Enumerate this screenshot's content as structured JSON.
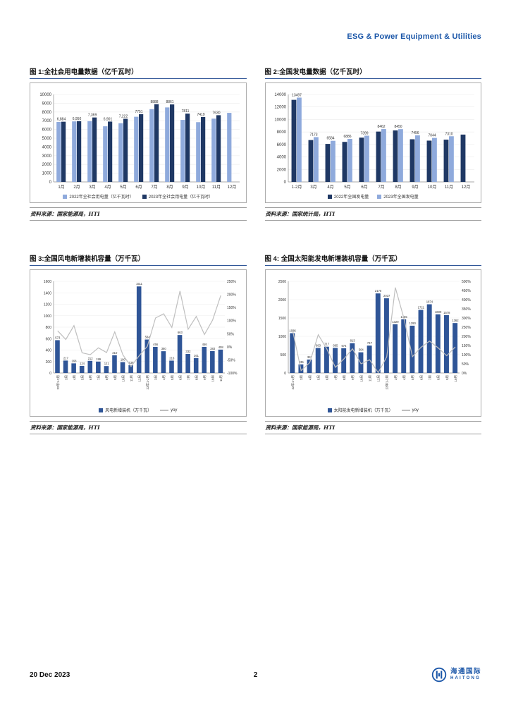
{
  "page": {
    "header_title": "ESG & Power Equipment & Utilities",
    "footer": {
      "date": "20 Dec 2023",
      "page_number": "2",
      "logo_text_cn": "海通国际",
      "logo_text_en": "HAITONG"
    }
  },
  "colors": {
    "header_blue": "#1A56A8",
    "caption_rule_blue": "#2F5597",
    "bar_light_blue": "#8FAADC",
    "bar_dark_navy": "#1F3864",
    "bar_medium_blue": "#2F5597",
    "yoy_line_gray": "#BFBFBF"
  },
  "chart_data": [
    {
      "type": "bar",
      "title": "图 1:全社会用电量数据（亿千瓦时）",
      "source": "资料来源：国家能源局，HTI",
      "categories": [
        "1月",
        "2月",
        "3月",
        "4月",
        "5月",
        "6月",
        "7月",
        "8月",
        "9月",
        "10月",
        "11月",
        "12月"
      ],
      "series": [
        {
          "name": "2022年全社会用电量（亿千瓦时）",
          "color": "#8FAADC",
          "values": [
            6855,
            6922,
            6944,
            6362,
            6716,
            7451,
            8324,
            8520,
            7092,
            6834,
            7236,
            7897
          ]
        },
        {
          "name": "2023年全社会用电量（亿千瓦时）",
          "color": "#1F3864",
          "values": [
            6884,
            6950,
            7369,
            6901,
            7222,
            7751,
            8888,
            8861,
            7811,
            7419,
            7630,
            null
          ],
          "labels": [
            "6,884",
            "6,950",
            "7,369",
            "6,901",
            "7,222",
            "7751",
            "8888",
            "8861",
            "7811",
            "7419",
            "7630",
            ""
          ]
        }
      ],
      "ylim": [
        0,
        10000
      ],
      "ytick": 1000,
      "grid": true,
      "legend_position": "bottom"
    },
    {
      "type": "bar",
      "title": "图 2:全国发电量数据（亿千瓦时）",
      "source": "资料来源：国家统计局，HTI",
      "categories": [
        "1-2月",
        "3月",
        "4月",
        "5月",
        "6月",
        "7月",
        "8月",
        "9月",
        "10月",
        "11月",
        "12月"
      ],
      "series": [
        {
          "name": "2022年全国发电量",
          "color": "#1F3864",
          "values": [
            13141,
            6702,
            6086,
            6410,
            7090,
            8059,
            8248,
            6830,
            6610,
            6767,
            7579
          ]
        },
        {
          "name": "2023年全国发电量",
          "color": "#8FAADC",
          "values": [
            13497,
            7173,
            6584,
            6886,
            7399,
            8462,
            8450,
            7456,
            7044,
            7310,
            null
          ],
          "labels": [
            "13497",
            "7173",
            "6584",
            "6886",
            "7399",
            "8462",
            "8450",
            "7456",
            "7044",
            "7310",
            ""
          ]
        }
      ],
      "ylim": [
        0,
        14000
      ],
      "ytick": 2000,
      "grid": true,
      "legend_position": "bottom"
    },
    {
      "type": "bar+line",
      "title": "图 3:全国风电新增装机容量（万千瓦）",
      "source": "资料来源：国家能源局，HTI",
      "categories": [
        "22年1-2月",
        "3月",
        "4月",
        "5月",
        "6月",
        "7月",
        "8月",
        "9月",
        "10月",
        "11月",
        "12月",
        "23年1-2月",
        "3月",
        "4月",
        "5月",
        "6月",
        "7月",
        "8月",
        "9月",
        "10月",
        "11月"
      ],
      "bar_series": {
        "name": "风电新增装机（万千瓦）",
        "color": "#2F5597",
        "values": [
          573,
          217,
          168,
          124,
          212,
          199,
          121,
          310,
          190,
          138,
          1511,
          584,
          456,
          380,
          216,
          663,
          332,
          261,
          456,
          383,
          408
        ],
        "labels": [
          "573",
          "217",
          "168",
          "124",
          "212",
          "199",
          "121",
          "310",
          "190",
          "138",
          "1511",
          "584",
          "456",
          "380",
          "216",
          "663",
          "332",
          "261",
          "456",
          "383",
          "408"
        ]
      },
      "line_series": {
        "name": "yoy",
        "color": "#BFBFBF",
        "values_pct": [
          61,
          28,
          81,
          -23,
          -30,
          -4,
          -22,
          57,
          -31,
          -75,
          -34,
          2,
          110,
          126,
          74,
          213,
          67,
          116,
          47,
          102,
          196
        ]
      },
      "ylim_left": [
        0,
        1600
      ],
      "ytick_left": 200,
      "ylim_right": [
        -100,
        250
      ],
      "ytick_right": 50,
      "rotate_x_labels": true,
      "grid": true,
      "legend_position": "bottom"
    },
    {
      "type": "bar+line",
      "title": "图 4: 全国太阳能发电新增装机容量（万千瓦）",
      "source": "资料来源：国家能源局，HTI",
      "categories": [
        "22年1-2月",
        "3月",
        "4月",
        "5月",
        "6月",
        "7月",
        "8月",
        "9月",
        "10月",
        "11月",
        "12月",
        "23年1-2月",
        "3月",
        "4月",
        "5月",
        "6月",
        "7月",
        "8月",
        "9月",
        "10月"
      ],
      "bar_series": {
        "name": "太阳能发电新增装机（万千瓦）",
        "color": "#2F5597",
        "values": [
          1086,
          235,
          367,
          683,
          717,
          685,
          674,
          813,
          564,
          747,
          2170,
          2037,
          1329,
          1465,
          1290,
          1721,
          1874,
          1600,
          1578,
          1362
        ],
        "labels": [
          "1086",
          "235",
          "367",
          "683",
          "717",
          "685",
          "674",
          "813",
          "564",
          "747",
          "2170",
          "2037",
          "1329",
          "1465",
          "1290",
          "1721",
          "1874",
          "1600",
          "1578",
          "1362"
        ]
      },
      "line_series": {
        "name": "yoy",
        "color": "#BFBFBF",
        "values_pct": [
          234,
          13,
          56,
          209,
          131,
          31,
          77,
          132,
          50,
          72,
          2,
          88,
          466,
          299,
          89,
          140,
          174,
          137,
          94,
          142
        ]
      },
      "ylim_left": [
        0,
        2500
      ],
      "ytick_left": 500,
      "ylim_right": [
        0,
        500
      ],
      "ytick_right": 50,
      "rotate_x_labels": true,
      "grid": true,
      "legend_position": "bottom"
    }
  ]
}
